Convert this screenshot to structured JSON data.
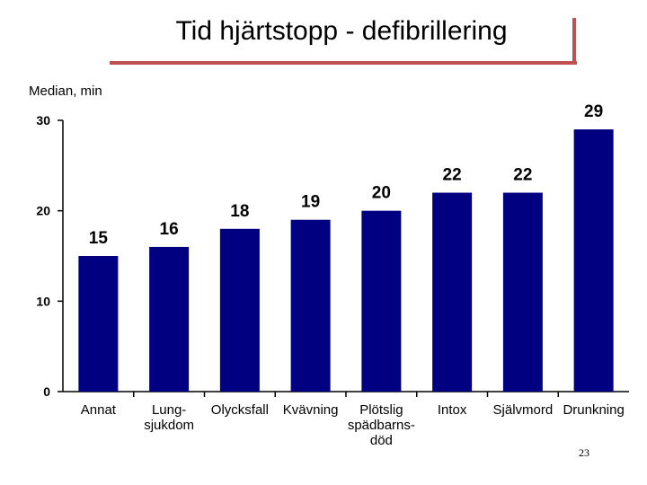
{
  "slide": {
    "title": "Tid hjärtstopp - defibrillering",
    "page_number": "23",
    "accent_color": "#c0504d"
  },
  "chart_data": {
    "type": "bar",
    "title": "Tid hjärtstopp - defibrillering",
    "ylabel": "Median, min",
    "xlabel": "",
    "ylim": [
      0,
      30
    ],
    "yticks": [
      0,
      10,
      20,
      30
    ],
    "grid": false,
    "legend": "none",
    "bar_color": "#000080",
    "categories": [
      [
        "Annat"
      ],
      [
        "Lung-",
        "sjukdom"
      ],
      [
        "Olycksfall"
      ],
      [
        "Kvävning"
      ],
      [
        "Plötslig",
        "spädbarns-",
        "död"
      ],
      [
        "Intox"
      ],
      [
        "Självmord"
      ],
      [
        "Drunkning"
      ]
    ],
    "values": [
      15,
      16,
      18,
      19,
      20,
      22,
      22,
      29
    ]
  }
}
